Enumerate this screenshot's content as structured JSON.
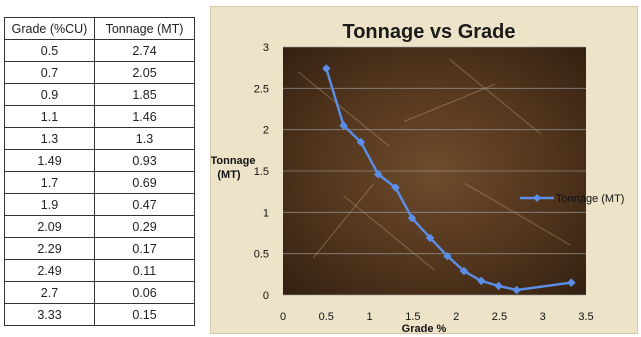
{
  "table": {
    "headers": [
      "Grade (%CU)",
      "Tonnage (MT)"
    ],
    "rows": [
      [
        "0.5",
        "2.74"
      ],
      [
        "0.7",
        "2.05"
      ],
      [
        "0.9",
        "1.85"
      ],
      [
        "1.1",
        "1.46"
      ],
      [
        "1.3",
        "1.3"
      ],
      [
        "1.49",
        "0.93"
      ],
      [
        "1.7",
        "0.69"
      ],
      [
        "1.9",
        "0.47"
      ],
      [
        "2.09",
        "0.29"
      ],
      [
        "2.29",
        "0.17"
      ],
      [
        "2.49",
        "0.11"
      ],
      [
        "2.7",
        "0.06"
      ],
      [
        "3.33",
        "0.15"
      ]
    ]
  },
  "chart_data": {
    "type": "line",
    "title": "Tonnage vs Grade",
    "xlabel": "Grade %",
    "ylabel_lines": [
      "Tonnage",
      "(MT)"
    ],
    "xlim": [
      0,
      3.5
    ],
    "ylim": [
      0,
      3
    ],
    "x_ticks": [
      "0",
      "0.5",
      "1",
      "1.5",
      "2",
      "2.5",
      "3",
      "3.5"
    ],
    "y_ticks": [
      "0",
      "0.5",
      "1",
      "1.5",
      "2",
      "2.5",
      "3"
    ],
    "grid": true,
    "legend_position": "right",
    "series": [
      {
        "name": "Tonnage (MT)",
        "color": "#5b8ee6",
        "x": [
          0.5,
          0.7,
          0.9,
          1.1,
          1.3,
          1.49,
          1.7,
          1.9,
          2.09,
          2.29,
          2.49,
          2.7,
          3.33
        ],
        "y": [
          2.74,
          2.05,
          1.85,
          1.46,
          1.3,
          0.93,
          0.69,
          0.47,
          0.29,
          0.17,
          0.11,
          0.06,
          0.15
        ]
      }
    ]
  }
}
